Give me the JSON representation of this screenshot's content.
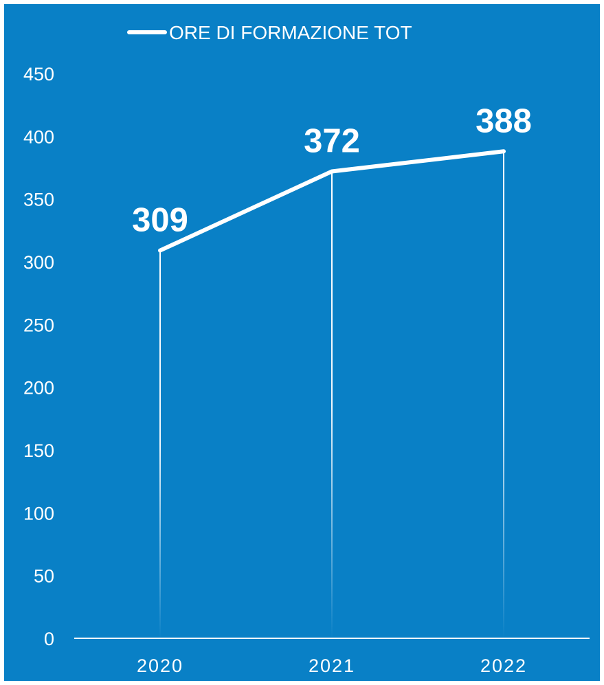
{
  "chart_data": {
    "type": "line",
    "title": "",
    "xlabel": "",
    "ylabel": "",
    "categories": [
      "2020",
      "2021",
      "2022"
    ],
    "series": [
      {
        "name": "ORE DI FORMAZIONE TOT",
        "values": [
          309,
          372,
          388
        ]
      }
    ],
    "data_labels": [
      "309",
      "372",
      "388"
    ],
    "ylim": [
      0,
      450
    ],
    "yticks": [
      0,
      50,
      100,
      150,
      200,
      250,
      300,
      350,
      400,
      450
    ],
    "ytick_labels": [
      "0",
      "50",
      "100",
      "150",
      "200",
      "250",
      "300",
      "350",
      "400",
      "450"
    ],
    "drop_lines": true,
    "grid": false,
    "legend_position": "top",
    "colors": {
      "background": "#0980c6",
      "line": "#ffffff",
      "text": "#ffffff"
    }
  }
}
